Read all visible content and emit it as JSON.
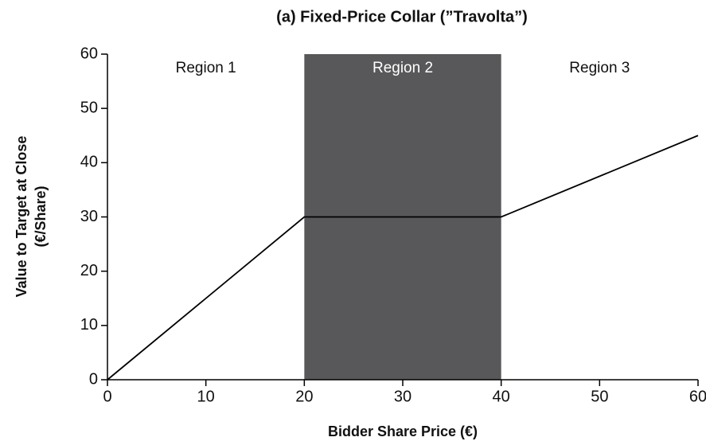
{
  "chart_data": {
    "type": "line",
    "title": "(a) Fixed-Price Collar (”Travolta”)",
    "xlabel": "Bidder Share Price (€)",
    "ylabel": [
      "Value to Target at Close",
      "(€/Share)"
    ],
    "x": [
      0,
      20,
      40,
      60
    ],
    "series": [
      {
        "name": "Value to Target",
        "color": "#000000",
        "values": [
          0,
          30,
          30,
          45
        ]
      }
    ],
    "xlim": [
      0,
      60
    ],
    "xticks": [
      0,
      10,
      20,
      30,
      40,
      50,
      60
    ],
    "ylim": [
      0,
      60
    ],
    "yticks": [
      0,
      10,
      20,
      30,
      40,
      50,
      60
    ],
    "grid": false,
    "regions": [
      {
        "label": "Region 1",
        "x": [
          0,
          20
        ]
      },
      {
        "label": "Region 2",
        "x": [
          20,
          40
        ],
        "color": "#58585a"
      },
      {
        "label": "Region 3",
        "x": [
          40,
          60
        ]
      }
    ]
  }
}
